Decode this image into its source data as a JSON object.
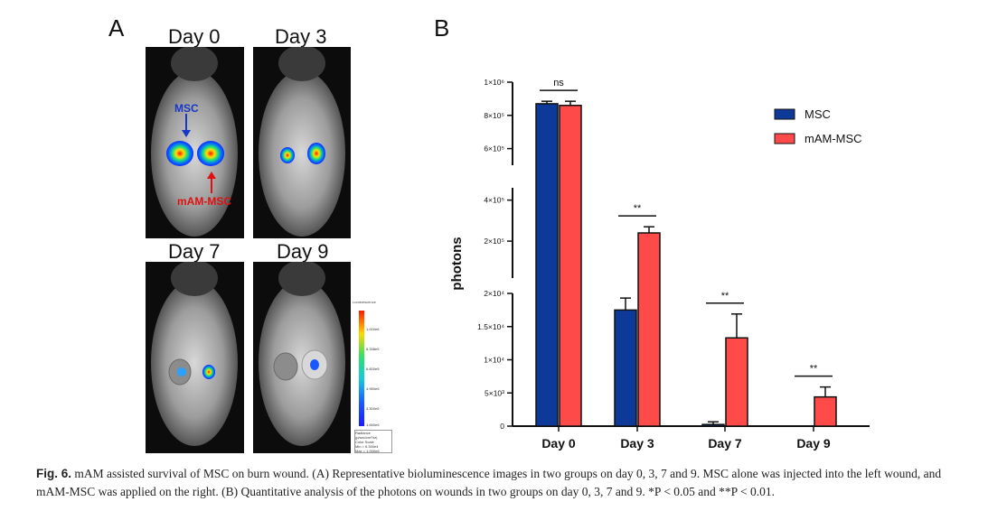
{
  "panel_a": {
    "letter": "A",
    "day_labels": [
      "Day 0",
      "Day 3",
      "Day 7",
      "Day 9"
    ],
    "annotations": {
      "msc": "MSC",
      "mam_msc": "mAM-MSC"
    },
    "scale": {
      "title": "Luminescence",
      "ticks": [
        "1.000e6",
        "8.338e5",
        "6.600e5",
        "4.950e5",
        "3.300e5",
        "1.650e5"
      ],
      "footer_lines": [
        "Radiance (p/sec/cm²/sr)",
        "Color Scale",
        "Min = 6.300e4",
        "Max = 1.000e6"
      ]
    }
  },
  "panel_b": {
    "letter": "B"
  },
  "chart_data": {
    "type": "bar",
    "ylabel": "photons",
    "categories": [
      "Day 0",
      "Day 3",
      "Day 7",
      "Day 9"
    ],
    "series": [
      {
        "name": "MSC",
        "color": "#0d3a99",
        "values": [
          870000,
          17500,
          250,
          0
        ],
        "errors": [
          15000,
          1800,
          400,
          0
        ]
      },
      {
        "name": "mAM-MSC",
        "color": "#ff4a4a",
        "values": [
          860000,
          240000,
          13300,
          4400
        ],
        "errors": [
          25000,
          30000,
          3600,
          1500
        ]
      }
    ],
    "broken_axis": true,
    "segments": [
      {
        "range": [
          0,
          20000
        ],
        "ticks": [
          0,
          5000,
          10000,
          15000,
          20000
        ],
        "tick_labels": [
          "0",
          "5×10³",
          "1×10⁴",
          "1.5×10⁴",
          "2×10⁴"
        ]
      },
      {
        "range": [
          20000,
          460000
        ],
        "ticks": [
          200000,
          400000
        ],
        "tick_labels": [
          "2×10⁵",
          "4×10⁵"
        ]
      },
      {
        "range": [
          500000,
          1000000
        ],
        "ticks": [
          600000,
          800000,
          1000000
        ],
        "tick_labels": [
          "6×10⁵",
          "8×10⁵",
          "1×10⁶"
        ]
      }
    ],
    "significance": [
      "ns",
      "**",
      "**",
      "**"
    ],
    "legend_position": "top-right"
  },
  "caption": {
    "label": "Fig. 6.",
    "text": "mAM assisted survival of MSC on burn wound. (A) Representative bioluminescence images in two groups on day 0, 3, 7 and 9. MSC alone was injected into the left wound, and mAM-MSC was applied on the right. (B) Quantitative analysis of the photons on wounds in two groups on day 0, 3, 7 and 9. *P < 0.05 and **P < 0.01."
  }
}
